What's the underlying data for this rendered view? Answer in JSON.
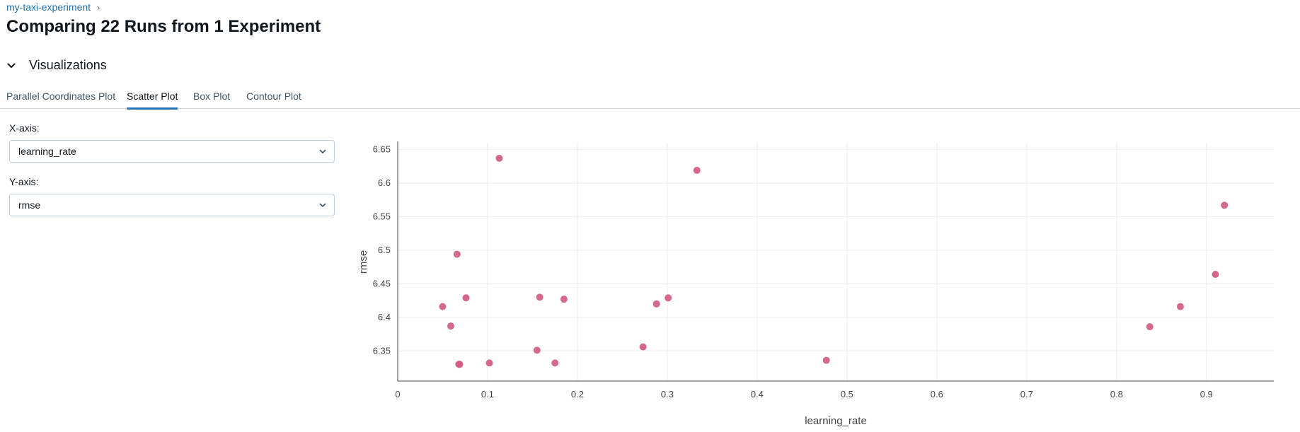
{
  "breadcrumb": {
    "experiment": "my-taxi-experiment",
    "separator": "›"
  },
  "page": {
    "title": "Comparing 22 Runs from 1 Experiment"
  },
  "section": {
    "title": "Visualizations",
    "expanded": true,
    "icon": "chevron-down-icon"
  },
  "tabs": [
    {
      "label": "Parallel Coordinates Plot",
      "active": false
    },
    {
      "label": "Scatter Plot",
      "active": true
    },
    {
      "label": "Box Plot",
      "active": false
    },
    {
      "label": "Contour Plot",
      "active": false
    }
  ],
  "controls": {
    "x_axis": {
      "label": "X-axis:",
      "value": "learning_rate"
    },
    "y_axis": {
      "label": "Y-axis:",
      "value": "rmse"
    }
  },
  "colors": {
    "accent": "#2272b4",
    "marker": "#d15b86",
    "grid": "#ececec"
  },
  "chart_data": {
    "type": "scatter",
    "xlabel": "learning_rate",
    "ylabel": "rmse",
    "xlim": [
      0,
      0.975
    ],
    "ylim": [
      6.305,
      6.66
    ],
    "xticks": [
      0,
      0.1,
      0.2,
      0.3,
      0.4,
      0.5,
      0.6,
      0.7,
      0.8,
      0.9
    ],
    "yticks": [
      6.35,
      6.4,
      6.45,
      6.5,
      6.55,
      6.6,
      6.65
    ],
    "grid": true,
    "points": [
      {
        "x": 0.05,
        "y": 6.416
      },
      {
        "x": 0.059,
        "y": 6.387
      },
      {
        "x": 0.066,
        "y": 6.494
      },
      {
        "x": 0.068,
        "y": 6.33
      },
      {
        "x": 0.069,
        "y": 6.33
      },
      {
        "x": 0.076,
        "y": 6.429
      },
      {
        "x": 0.102,
        "y": 6.332
      },
      {
        "x": 0.113,
        "y": 6.637
      },
      {
        "x": 0.155,
        "y": 6.351
      },
      {
        "x": 0.158,
        "y": 6.43
      },
      {
        "x": 0.175,
        "y": 6.332
      },
      {
        "x": 0.185,
        "y": 6.427
      },
      {
        "x": 0.273,
        "y": 6.356
      },
      {
        "x": 0.288,
        "y": 6.42
      },
      {
        "x": 0.301,
        "y": 6.429
      },
      {
        "x": 0.333,
        "y": 6.619
      },
      {
        "x": 0.477,
        "y": 6.336
      },
      {
        "x": 0.837,
        "y": 6.386
      },
      {
        "x": 0.871,
        "y": 6.416
      },
      {
        "x": 0.91,
        "y": 6.464
      },
      {
        "x": 0.92,
        "y": 6.567
      }
    ]
  }
}
